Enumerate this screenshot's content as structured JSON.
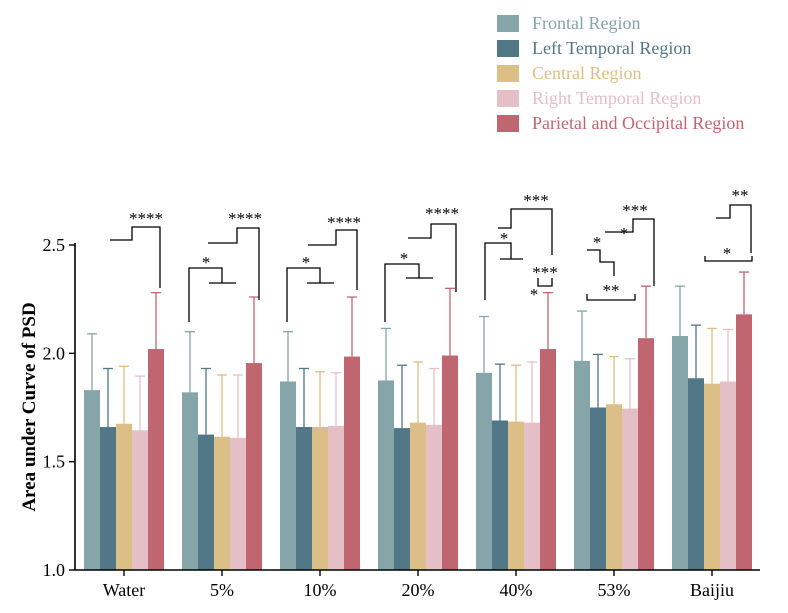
{
  "chart_data": {
    "type": "bar",
    "ylabel": "Area under Curve of PSD",
    "ylim": [
      1.0,
      2.5
    ],
    "yticks": [
      "1.0",
      "1.5",
      "2.0",
      "2.5"
    ],
    "categories": [
      "Water",
      "5%",
      "10%",
      "20%",
      "40%",
      "53%",
      "Baijiu"
    ],
    "series": [
      {
        "name": "Frontal Region",
        "color": "#86a5a8",
        "values": [
          1.83,
          1.82,
          1.87,
          1.875,
          1.91,
          1.965,
          2.08
        ],
        "errors": [
          0.26,
          0.28,
          0.23,
          0.24,
          0.26,
          0.23,
          0.23
        ]
      },
      {
        "name": "Left Temporal Region",
        "color": "#527787",
        "values": [
          1.66,
          1.625,
          1.66,
          1.655,
          1.69,
          1.75,
          1.885
        ],
        "errors": [
          0.27,
          0.305,
          0.27,
          0.29,
          0.26,
          0.245,
          0.245
        ]
      },
      {
        "name": "Central Region",
        "color": "#dbbf86",
        "values": [
          1.675,
          1.615,
          1.66,
          1.68,
          1.685,
          1.765,
          1.86
        ],
        "errors": [
          0.265,
          0.285,
          0.255,
          0.28,
          0.26,
          0.22,
          0.255
        ]
      },
      {
        "name": "Right Temporal Region",
        "color": "#e4bfc6",
        "values": [
          1.645,
          1.61,
          1.665,
          1.67,
          1.68,
          1.745,
          1.87
        ],
        "errors": [
          0.25,
          0.29,
          0.245,
          0.26,
          0.28,
          0.23,
          0.24
        ]
      },
      {
        "name": "Parietal and Occipital Region",
        "color": "#bf6670",
        "values": [
          2.02,
          1.955,
          1.985,
          1.99,
          2.02,
          2.07,
          2.18
        ],
        "errors": [
          0.26,
          0.305,
          0.275,
          0.31,
          0.26,
          0.24,
          0.195
        ]
      }
    ],
    "grid": false,
    "legend": "top-right",
    "significance": [
      {
        "category": "Water",
        "labels": [
          "****"
        ]
      },
      {
        "category": "5%",
        "labels": [
          "*",
          "****"
        ]
      },
      {
        "category": "10%",
        "labels": [
          "*",
          "****"
        ]
      },
      {
        "category": "20%",
        "labels": [
          "*",
          "****"
        ]
      },
      {
        "category": "40%",
        "labels": [
          "*",
          "***",
          "***",
          "*"
        ]
      },
      {
        "category": "53%",
        "labels": [
          "*",
          "*",
          "***",
          "**"
        ]
      },
      {
        "category": "Baijiu",
        "labels": [
          "**",
          "*"
        ]
      }
    ]
  }
}
